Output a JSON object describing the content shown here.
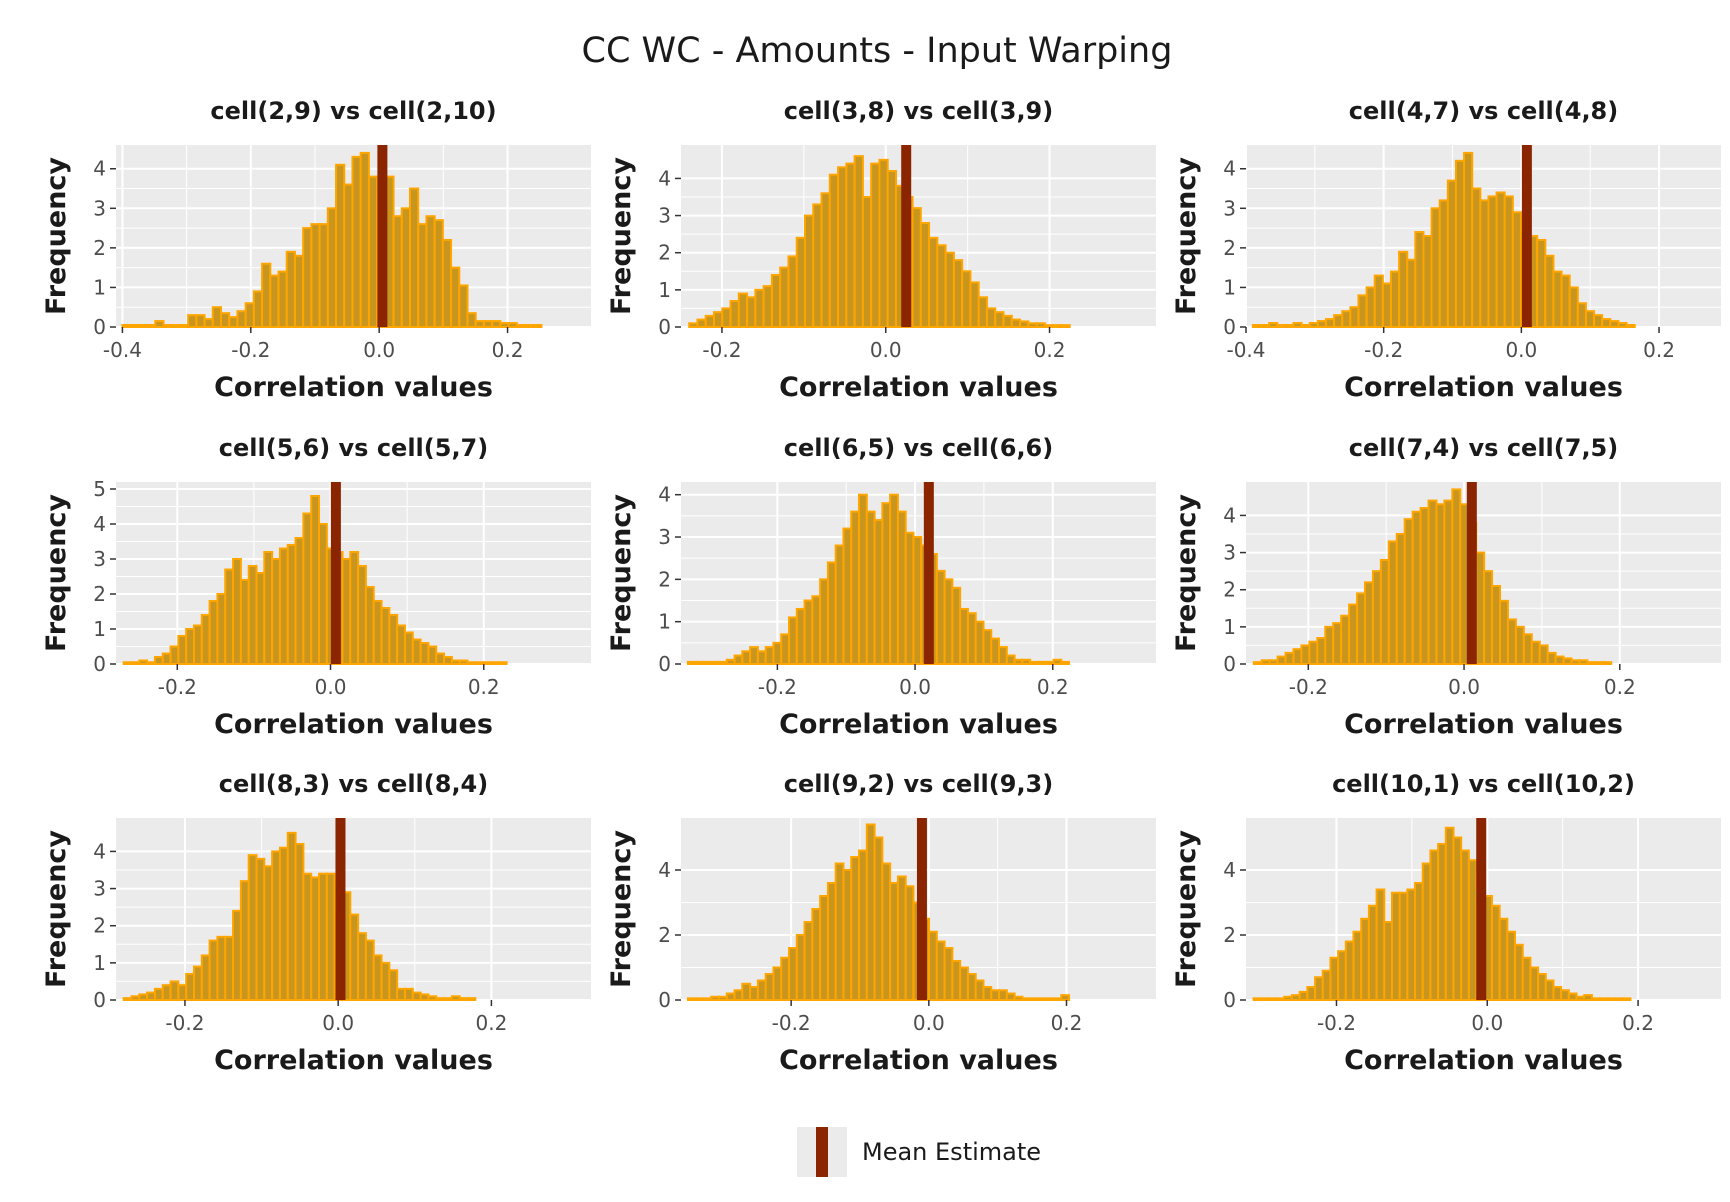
{
  "title": "CC WC - Amounts - Input Warping",
  "colors": {
    "panel_background": "#ebebeb",
    "grid_major": "#ffffff",
    "bar_fill": "#c8961e",
    "bar_outline": "#ffa500",
    "mean_line": "#8b2500",
    "tick_mark": "#333333"
  },
  "legend": {
    "label": "Mean Estimate",
    "position": "bottom"
  },
  "chart_data": [
    {
      "type": "histogram",
      "title": "cell(2,9) vs cell(2,10)",
      "xlabel": "Correlation values",
      "ylabel": "Frequency",
      "xlim": [
        -0.41,
        0.33
      ],
      "ylim": [
        0,
        4.6
      ],
      "xticks": [
        -0.4,
        -0.2,
        0.0,
        0.2
      ],
      "xtick_labels": [
        "-0.4",
        "-0.2",
        "0.0",
        "0.2"
      ],
      "yticks": [
        0,
        1,
        2,
        3,
        4
      ],
      "yticks_labels": [
        "0",
        "1",
        "2",
        "3",
        "4"
      ],
      "bin_start": -0.4,
      "bin_width": 0.0128,
      "values": [
        0.05,
        0.05,
        0.05,
        0.05,
        0.15,
        0.05,
        0.05,
        0.05,
        0.3,
        0.3,
        0.2,
        0.5,
        0.35,
        0.25,
        0.4,
        0.6,
        0.9,
        1.6,
        1.3,
        1.4,
        1.9,
        1.8,
        2.5,
        2.6,
        2.6,
        3.0,
        4.1,
        3.6,
        4.3,
        4.4,
        3.8,
        3.3,
        3.8,
        2.8,
        3.0,
        3.5,
        2.6,
        2.8,
        2.7,
        2.2,
        1.5,
        1.05,
        0.35,
        0.15,
        0.15,
        0.15,
        0.1,
        0.1,
        0.05,
        0.05,
        0.05
      ],
      "mean_estimate": 0.005
    },
    {
      "type": "histogram",
      "title": "cell(3,8) vs cell(3,9)",
      "xlabel": "Correlation values",
      "ylabel": "Frequency",
      "xlim": [
        -0.25,
        0.33
      ],
      "ylim": [
        0,
        4.9
      ],
      "xticks": [
        -0.2,
        0.0,
        0.2
      ],
      "xtick_labels": [
        "-0.2",
        "0.0",
        "0.2"
      ],
      "yticks": [
        0,
        1,
        2,
        3,
        4
      ],
      "yticks_labels": [
        "0",
        "1",
        "2",
        "3",
        "4"
      ],
      "bin_start": -0.24,
      "bin_width": 0.0101,
      "values": [
        0.1,
        0.2,
        0.3,
        0.4,
        0.5,
        0.7,
        0.9,
        0.8,
        1.0,
        1.1,
        1.4,
        1.6,
        1.9,
        2.4,
        3.0,
        3.3,
        3.6,
        4.1,
        4.3,
        4.4,
        4.6,
        3.5,
        4.4,
        4.5,
        4.2,
        3.8,
        3.5,
        3.2,
        2.8,
        2.4,
        2.2,
        2.0,
        1.8,
        1.5,
        1.2,
        0.8,
        0.5,
        0.4,
        0.3,
        0.2,
        0.15,
        0.1,
        0.1,
        0.05,
        0.05,
        0.05
      ],
      "mean_estimate": 0.025
    },
    {
      "type": "histogram",
      "title": "cell(4,7) vs cell(4,8)",
      "xlabel": "Correlation values",
      "ylabel": "Frequency",
      "xlim": [
        -0.4,
        0.29
      ],
      "ylim": [
        0,
        4.6
      ],
      "xticks": [
        -0.4,
        -0.2,
        0.0,
        0.2
      ],
      "xtick_labels": [
        "-0.4",
        "-0.2",
        "0.0",
        "0.2"
      ],
      "yticks": [
        0,
        1,
        2,
        3,
        4
      ],
      "yticks_labels": [
        "0",
        "1",
        "2",
        "3",
        "4"
      ],
      "bin_start": -0.39,
      "bin_width": 0.0118,
      "values": [
        0.05,
        0.05,
        0.1,
        0.05,
        0.05,
        0.1,
        0.05,
        0.1,
        0.15,
        0.2,
        0.3,
        0.4,
        0.5,
        0.8,
        1.0,
        1.3,
        1.1,
        1.4,
        1.9,
        1.7,
        2.4,
        2.3,
        3.0,
        3.2,
        3.7,
        4.2,
        4.4,
        3.5,
        3.2,
        3.3,
        3.4,
        3.3,
        2.9,
        2.4,
        2.3,
        2.2,
        1.8,
        1.4,
        1.3,
        1.0,
        0.6,
        0.4,
        0.3,
        0.2,
        0.15,
        0.1,
        0.05
      ],
      "mean_estimate": 0.008
    },
    {
      "type": "histogram",
      "title": "cell(5,6) vs cell(5,7)",
      "xlabel": "Correlation values",
      "ylabel": "Frequency",
      "xlim": [
        -0.28,
        0.34
      ],
      "ylim": [
        0,
        5.2
      ],
      "xticks": [
        -0.2,
        0.0,
        0.2
      ],
      "xtick_labels": [
        "-0.2",
        "0.0",
        "0.2"
      ],
      "yticks": [
        0,
        1,
        2,
        3,
        4,
        5
      ],
      "yticks_labels": [
        "0",
        "1",
        "2",
        "3",
        "4",
        "5"
      ],
      "bin_start": -0.27,
      "bin_width": 0.0102,
      "values": [
        0.05,
        0.05,
        0.1,
        0.05,
        0.2,
        0.3,
        0.5,
        0.8,
        1.0,
        1.1,
        1.4,
        1.8,
        2.0,
        2.7,
        3.0,
        2.4,
        2.8,
        2.6,
        3.2,
        3.0,
        3.3,
        3.4,
        3.6,
        4.3,
        4.8,
        4.0,
        3.3,
        3.2,
        3.0,
        3.2,
        2.8,
        2.2,
        1.8,
        1.6,
        1.4,
        1.1,
        0.9,
        0.7,
        0.6,
        0.5,
        0.3,
        0.2,
        0.1,
        0.1,
        0.05,
        0.05,
        0.05,
        0.05,
        0.05
      ],
      "mean_estimate": 0.007
    },
    {
      "type": "histogram",
      "title": "cell(6,5) vs cell(6,6)",
      "xlabel": "Correlation values",
      "ylabel": "Frequency",
      "xlim": [
        -0.34,
        0.35
      ],
      "ylim": [
        0,
        4.3
      ],
      "xticks": [
        -0.2,
        0.0,
        0.2
      ],
      "xtick_labels": [
        "-0.2",
        "0.0",
        "0.2"
      ],
      "yticks": [
        0,
        1,
        2,
        3,
        4
      ],
      "yticks_labels": [
        "0",
        "1",
        "2",
        "3",
        "4"
      ],
      "bin_start": -0.33,
      "bin_width": 0.0113,
      "values": [
        0.05,
        0.05,
        0.05,
        0.05,
        0.05,
        0.1,
        0.2,
        0.3,
        0.4,
        0.3,
        0.4,
        0.5,
        0.7,
        1.1,
        1.3,
        1.5,
        1.6,
        2.0,
        2.4,
        2.8,
        3.2,
        3.6,
        4.0,
        3.6,
        3.4,
        3.8,
        4.0,
        3.6,
        3.1,
        3.0,
        2.8,
        2.6,
        2.2,
        2.0,
        1.8,
        1.3,
        1.2,
        1.0,
        0.8,
        0.6,
        0.4,
        0.2,
        0.1,
        0.1,
        0.05,
        0.05,
        0.05,
        0.1,
        0.05
      ],
      "mean_estimate": 0.02
    },
    {
      "type": "histogram",
      "title": "cell(7,4) vs cell(7,5)",
      "xlabel": "Correlation values",
      "ylabel": "Frequency",
      "xlim": [
        -0.28,
        0.33
      ],
      "ylim": [
        0,
        4.9
      ],
      "xticks": [
        -0.2,
        0.0,
        0.2
      ],
      "xtick_labels": [
        "-0.2",
        "0.0",
        "0.2"
      ],
      "yticks": [
        0,
        1,
        2,
        3,
        4
      ],
      "yticks_labels": [
        "0",
        "1",
        "2",
        "3",
        "4"
      ],
      "bin_start": -0.27,
      "bin_width": 0.0102,
      "values": [
        0.05,
        0.1,
        0.1,
        0.2,
        0.3,
        0.4,
        0.5,
        0.6,
        0.7,
        1.0,
        1.1,
        1.3,
        1.6,
        1.9,
        2.2,
        2.5,
        2.8,
        3.3,
        3.5,
        3.9,
        4.1,
        4.2,
        4.4,
        4.3,
        4.4,
        4.7,
        4.3,
        3.8,
        3.0,
        2.5,
        2.1,
        1.7,
        1.2,
        1.0,
        0.8,
        0.6,
        0.5,
        0.3,
        0.2,
        0.15,
        0.1,
        0.1,
        0.05,
        0.05,
        0.05
      ],
      "mean_estimate": 0.01
    },
    {
      "type": "histogram",
      "title": "cell(8,3) vs cell(8,4)",
      "xlabel": "Correlation values",
      "ylabel": "Frequency",
      "xlim": [
        -0.29,
        0.33
      ],
      "ylim": [
        0,
        4.9
      ],
      "xticks": [
        -0.2,
        0.0,
        0.2
      ],
      "xtick_labels": [
        "-0.2",
        "0.0",
        "0.2"
      ],
      "yticks": [
        0,
        1,
        2,
        3,
        4
      ],
      "yticks_labels": [
        "0",
        "1",
        "2",
        "3",
        "4"
      ],
      "bin_start": -0.28,
      "bin_width": 0.0102,
      "values": [
        0.05,
        0.1,
        0.15,
        0.2,
        0.3,
        0.4,
        0.5,
        0.4,
        0.7,
        0.9,
        1.2,
        1.6,
        1.7,
        1.7,
        2.4,
        3.2,
        3.9,
        3.8,
        3.6,
        4.0,
        4.1,
        4.5,
        4.2,
        3.4,
        3.3,
        3.4,
        3.4,
        3.3,
        2.9,
        2.3,
        1.8,
        1.6,
        1.2,
        1.0,
        0.8,
        0.3,
        0.3,
        0.2,
        0.15,
        0.1,
        0.05,
        0.05,
        0.1,
        0.05,
        0.05
      ],
      "mean_estimate": 0.003
    },
    {
      "type": "histogram",
      "title": "cell(9,2) vs cell(9,3)",
      "xlabel": "Correlation values",
      "ylabel": "Frequency",
      "xlim": [
        -0.36,
        0.33
      ],
      "ylim": [
        0,
        5.6
      ],
      "xticks": [
        -0.2,
        0.0,
        0.2
      ],
      "xtick_labels": [
        "-0.2",
        "0.0",
        "0.2"
      ],
      "yticks": [
        0,
        2,
        4
      ],
      "yticks_labels": [
        "0",
        "2",
        "4"
      ],
      "bin_start": -0.35,
      "bin_width": 0.0113,
      "values": [
        0.05,
        0.05,
        0.05,
        0.1,
        0.1,
        0.2,
        0.3,
        0.5,
        0.4,
        0.6,
        0.8,
        1.0,
        1.3,
        1.6,
        2.0,
        2.4,
        2.8,
        3.2,
        3.6,
        4.2,
        4.0,
        4.4,
        4.6,
        5.4,
        5.0,
        4.2,
        3.6,
        3.8,
        3.5,
        3.0,
        2.5,
        2.1,
        1.8,
        1.6,
        1.2,
        1.0,
        0.8,
        0.6,
        0.4,
        0.3,
        0.3,
        0.2,
        0.1,
        0.05,
        0.05,
        0.05,
        0.05,
        0.05,
        0.15
      ],
      "mean_estimate": -0.01
    },
    {
      "type": "histogram",
      "title": "cell(10,1) vs cell(10,2)",
      "xlabel": "Correlation values",
      "ylabel": "Frequency",
      "xlim": [
        -0.32,
        0.31
      ],
      "ylim": [
        0,
        5.6
      ],
      "xticks": [
        -0.2,
        0.0,
        0.2
      ],
      "xtick_labels": [
        "-0.2",
        "0.0",
        "0.2"
      ],
      "yticks": [
        0,
        2,
        4
      ],
      "yticks_labels": [
        "0",
        "2",
        "4"
      ],
      "bin_start": -0.31,
      "bin_width": 0.0102,
      "values": [
        0.05,
        0.05,
        0.05,
        0.05,
        0.1,
        0.15,
        0.25,
        0.4,
        0.7,
        0.9,
        1.3,
        1.5,
        1.8,
        2.1,
        2.5,
        2.9,
        3.4,
        2.4,
        3.3,
        3.3,
        3.4,
        3.6,
        4.2,
        4.6,
        4.8,
        5.3,
        5.0,
        4.6,
        4.3,
        3.8,
        3.2,
        2.9,
        2.5,
        2.1,
        1.7,
        1.3,
        1.0,
        0.8,
        0.6,
        0.4,
        0.3,
        0.2,
        0.1,
        0.15,
        0.05,
        0.05,
        0.05,
        0.05,
        0.05
      ],
      "mean_estimate": -0.008
    }
  ]
}
